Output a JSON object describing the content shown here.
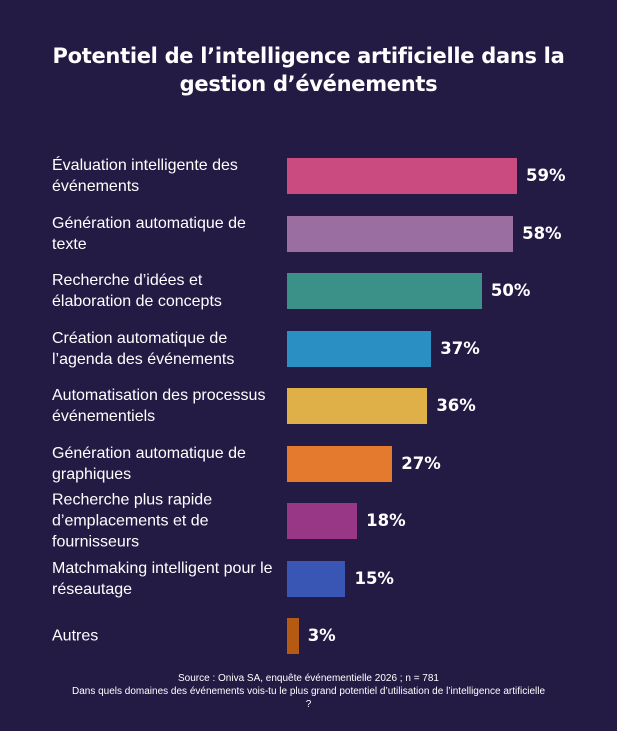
{
  "chart_data": {
    "type": "bar",
    "orientation": "horizontal",
    "title": "Potentiel de l’intelligence artificielle dans la gestion d’événements",
    "categories": [
      "Évaluation intelligente des événements",
      "Génération automatique de texte",
      "Recherche d’idées et élaboration de concepts",
      "Création automatique de l’agenda des événements",
      "Automatisation des processus événementiels",
      "Génération automatique de graphiques",
      "Recherche plus rapide d’emplacements et de fournisseurs",
      "Matchmaking intelligent pour le réseautage",
      "Autres"
    ],
    "values": [
      59,
      58,
      50,
      37,
      36,
      27,
      18,
      15,
      3
    ],
    "value_labels": [
      "59%",
      "58%",
      "50%",
      "37%",
      "36%",
      "27%",
      "18%",
      "15%",
      "3%"
    ],
    "colors": [
      "#c94b80",
      "#9a6ea0",
      "#3b9088",
      "#2a8fc2",
      "#dfaf48",
      "#e47a2e",
      "#973785",
      "#3a56b5",
      "#b55a12"
    ],
    "unit": "%",
    "background": "#241b45",
    "xlim": [
      0,
      59
    ],
    "grid": false,
    "legend": "none"
  },
  "footer": {
    "source": "Source : Oniva SA, enquête événementielle 2026 ; n = 781",
    "question": "Dans quels domaines des événements vois-tu le plus grand potentiel d’utilisation de l’intelligence artificielle ?"
  }
}
